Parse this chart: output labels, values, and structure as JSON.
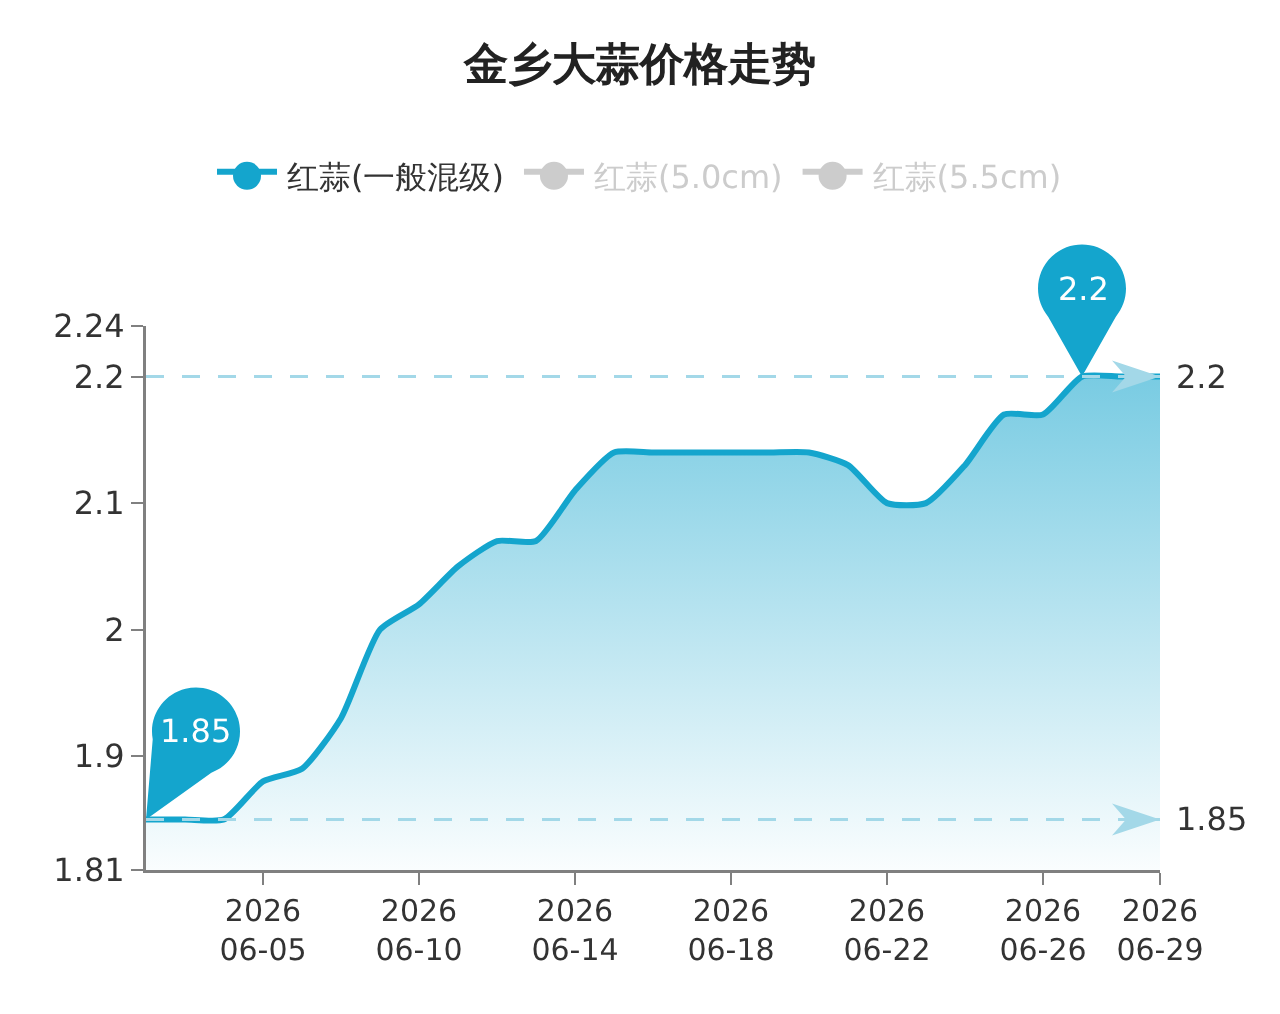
{
  "chart_data": {
    "type": "area",
    "title": "金乡大蒜价格走势",
    "categories": [
      null,
      null,
      null,
      "2026\n06-05",
      null,
      null,
      null,
      "2026\n06-10",
      null,
      null,
      null,
      "2026\n06-14",
      null,
      null,
      null,
      "2026\n06-18",
      null,
      null,
      null,
      "2026\n06-22",
      null,
      null,
      null,
      "2026\n06-26",
      null,
      null,
      "2026\n06-29"
    ],
    "series": [
      {
        "name": "红蒜(一般混级)",
        "color": "#14a5cd",
        "values": [
          1.85,
          1.85,
          1.85,
          1.88,
          1.89,
          1.93,
          2.0,
          2.02,
          2.05,
          2.07,
          2.07,
          2.11,
          2.14,
          2.14,
          2.14,
          2.14,
          2.14,
          2.14,
          2.13,
          2.1,
          2.1,
          2.13,
          2.17,
          2.17,
          2.2,
          2.2,
          2.2
        ],
        "value_labels": [
          "1.85",
          null,
          null,
          null,
          null,
          null,
          null,
          null,
          null,
          null,
          null,
          null,
          null,
          null,
          null,
          null,
          null,
          null,
          null,
          null,
          null,
          null,
          null,
          null,
          "2.2",
          null,
          null
        ]
      },
      {
        "name": "红蒜(5.0cm)",
        "color": "#cccccc",
        "values": [
          null,
          null,
          null,
          null,
          null,
          null,
          null,
          null,
          null,
          null,
          null,
          null,
          null,
          null,
          null,
          null,
          null,
          null,
          null,
          null,
          null,
          null,
          null,
          null,
          null,
          null,
          null
        ]
      },
      {
        "name": "红蒜(5.5cm)",
        "color": "#cccccc",
        "values": [
          null,
          null,
          null,
          null,
          null,
          null,
          null,
          null,
          null,
          null,
          null,
          null,
          null,
          null,
          null,
          null,
          null,
          null,
          null,
          null,
          null,
          null,
          null,
          null,
          null,
          null,
          null
        ]
      }
    ],
    "ylim": [
      1.81,
      2.24
    ],
    "yticks": [
      1.81,
      1.9,
      2,
      2.1,
      2.2,
      2.24
    ],
    "ref_lines": [
      {
        "axis": "y",
        "value": 2.2,
        "label": "2.2",
        "color": "#a3d8e8",
        "line_style": "dashed"
      },
      {
        "axis": "y",
        "value": 1.85,
        "label": "1.85",
        "color": "#a3d8e8",
        "line_style": "dashed"
      }
    ],
    "legend": "top"
  }
}
